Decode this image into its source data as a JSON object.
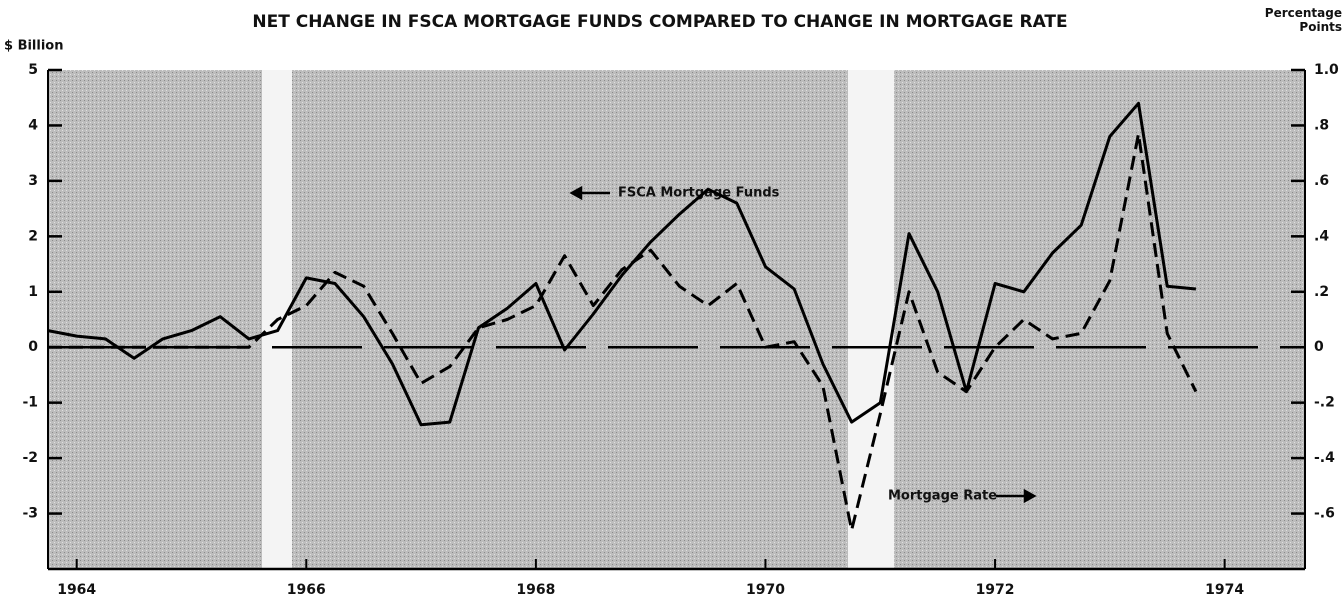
{
  "chart_data": {
    "type": "line",
    "title": "NET CHANGE IN FSCA MORTGAGE FUNDS COMPARED TO CHANGE IN MORTGAGE RATE",
    "y_label": "$ Billion",
    "y2_label": "Percentage Points",
    "annotations": [
      "FSCA Mortgage Funds",
      "Mortgage Rate"
    ],
    "x": [
      1964.25,
      1964.5,
      1964.75,
      1965.0,
      1965.25,
      1965.5,
      1965.75,
      1966.0,
      1966.25,
      1966.5,
      1966.75,
      1967.0,
      1967.25,
      1967.5,
      1967.75,
      1968.0,
      1968.25,
      1968.5,
      1968.75,
      1969.0,
      1969.25,
      1969.5,
      1969.75,
      1970.0,
      1970.25,
      1970.5,
      1970.75,
      1971.0,
      1971.25,
      1971.5,
      1971.75,
      1972.0,
      1972.25,
      1972.5,
      1972.75,
      1973.0,
      1973.25,
      1973.5,
      1973.75,
      1974.0,
      1974.25
    ],
    "series": [
      {
        "name": "FSCA Mortgage Funds",
        "color": "#000000",
        "style": "solid",
        "values": [
          0.3,
          0.2,
          0.15,
          -0.2,
          0.15,
          0.3,
          0.55,
          0.15,
          0.3,
          1.25,
          1.15,
          0.55,
          -0.3,
          -1.4,
          -1.35,
          0.35,
          0.7,
          1.15,
          -0.05,
          0.6,
          1.3,
          1.9,
          2.4,
          2.85,
          2.6,
          1.45,
          1.05,
          -0.3,
          -1.35,
          -1.0,
          2.05,
          1.0,
          -0.8,
          1.15,
          1.0,
          1.7,
          2.2,
          3.8,
          4.4,
          1.1,
          1.05
        ]
      },
      {
        "name": "Mortgage Rate",
        "color": "#000000",
        "style": "dashed",
        "axis": "y2",
        "values": [
          0,
          0,
          0,
          0,
          0,
          0,
          0,
          0,
          0.1,
          0.15,
          0.27,
          0.22,
          0.05,
          -0.13,
          -0.07,
          0.07,
          0.1,
          0.15,
          0.33,
          0.15,
          0.28,
          0.35,
          0.22,
          0.15,
          0.23,
          0.0,
          0.02,
          -0.14,
          -0.66,
          -0.24,
          0.2,
          -0.09,
          -0.16,
          0.0,
          0.1,
          0.03,
          0.05,
          0.24,
          0.77,
          0.05,
          -0.16
        ]
      }
    ],
    "xlim": [
      1964.25,
      1975.2
    ],
    "xticks": [
      {
        "value": 1964.5,
        "label": "1964"
      },
      {
        "value": 1966.5,
        "label": "1966"
      },
      {
        "value": 1968.5,
        "label": "1968"
      },
      {
        "value": 1970.5,
        "label": "1970"
      },
      {
        "value": 1972.5,
        "label": "1972"
      },
      {
        "value": 1974.5,
        "label": "1974"
      }
    ],
    "ylim": [
      -4,
      5
    ],
    "yticks": [
      5,
      4,
      3,
      2,
      1,
      0,
      -1,
      -2,
      -3
    ],
    "y2lim": [
      -0.8,
      1.0
    ],
    "y2ticks": [
      {
        "value": 1.0,
        "label": "1.0"
      },
      {
        "value": 0.8,
        "label": ".8"
      },
      {
        "value": 0.6,
        "label": ".6"
      },
      {
        "value": 0.4,
        "label": ".4"
      },
      {
        "value": 0.2,
        "label": ".2"
      },
      {
        "value": 0,
        "label": "0"
      },
      {
        "value": -0.2,
        "label": "-.2"
      },
      {
        "value": -0.4,
        "label": "-.4"
      },
      {
        "value": -0.6,
        "label": "-.6"
      }
    ]
  }
}
